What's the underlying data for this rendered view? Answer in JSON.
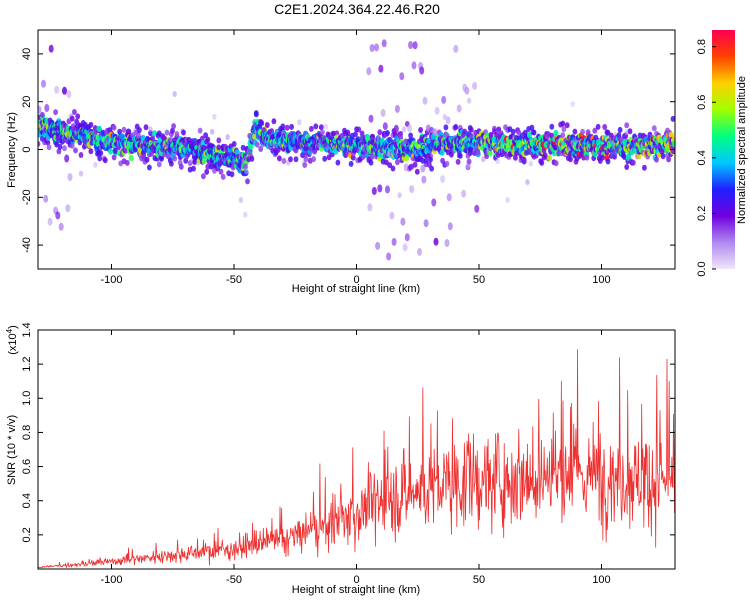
{
  "title": "C2E1.2024.364.22.46.R20",
  "chart_data": [
    {
      "type": "heatmap",
      "xlabel": "Height of straight line (km)",
      "ylabel": "Frequency (Hz)",
      "xlim": [
        -130,
        130
      ],
      "ylim": [
        -50,
        50
      ],
      "xticks": [
        -100,
        -50,
        0,
        50,
        100
      ],
      "yticks": [
        -40,
        -20,
        0,
        20,
        40
      ],
      "colorbar": {
        "label": "Normalized spectral amplitude",
        "range": [
          0,
          0.86
        ],
        "ticks": [
          0.0,
          0.2,
          0.4,
          0.6,
          0.8
        ],
        "colormap": [
          "#f0e6fa",
          "#b088f0",
          "#7000e0",
          "#2020ff",
          "#00c8ff",
          "#00ff80",
          "#a0ff00",
          "#ffd000",
          "#ff4000",
          "#ff0050"
        ]
      },
      "ridge": {
        "x": [
          -125,
          -110,
          -90,
          -70,
          -55,
          -45,
          -42,
          -35,
          -20,
          0,
          20,
          40,
          50,
          52,
          70,
          90,
          110,
          130
        ],
        "y": [
          9,
          5,
          2,
          1,
          -3,
          -6,
          8,
          4,
          3,
          2,
          0,
          3,
          3,
          2,
          2,
          2,
          1,
          3
        ]
      },
      "grid": false
    },
    {
      "type": "line",
      "xlabel": "Height of straight line (km)",
      "ylabel": "SNR (10 * v/v)",
      "yunit": "(x10^4)",
      "xlim": [
        -130,
        130
      ],
      "ylim": [
        0,
        1.4
      ],
      "xticks": [
        -100,
        -50,
        0,
        50,
        100
      ],
      "yticks": [
        0.2,
        0.4,
        0.6,
        0.8,
        1.0,
        1.2,
        1.4
      ],
      "trend": {
        "x": [
          -130,
          -110,
          -90,
          -70,
          -50,
          -30,
          -10,
          0,
          10,
          25,
          40,
          60,
          80,
          100,
          130
        ],
        "y": [
          0.01,
          0.03,
          0.06,
          0.09,
          0.12,
          0.17,
          0.26,
          0.33,
          0.4,
          0.46,
          0.5,
          0.53,
          0.55,
          0.55,
          0.52
        ]
      },
      "color": "#ee3030",
      "grid": false
    }
  ]
}
